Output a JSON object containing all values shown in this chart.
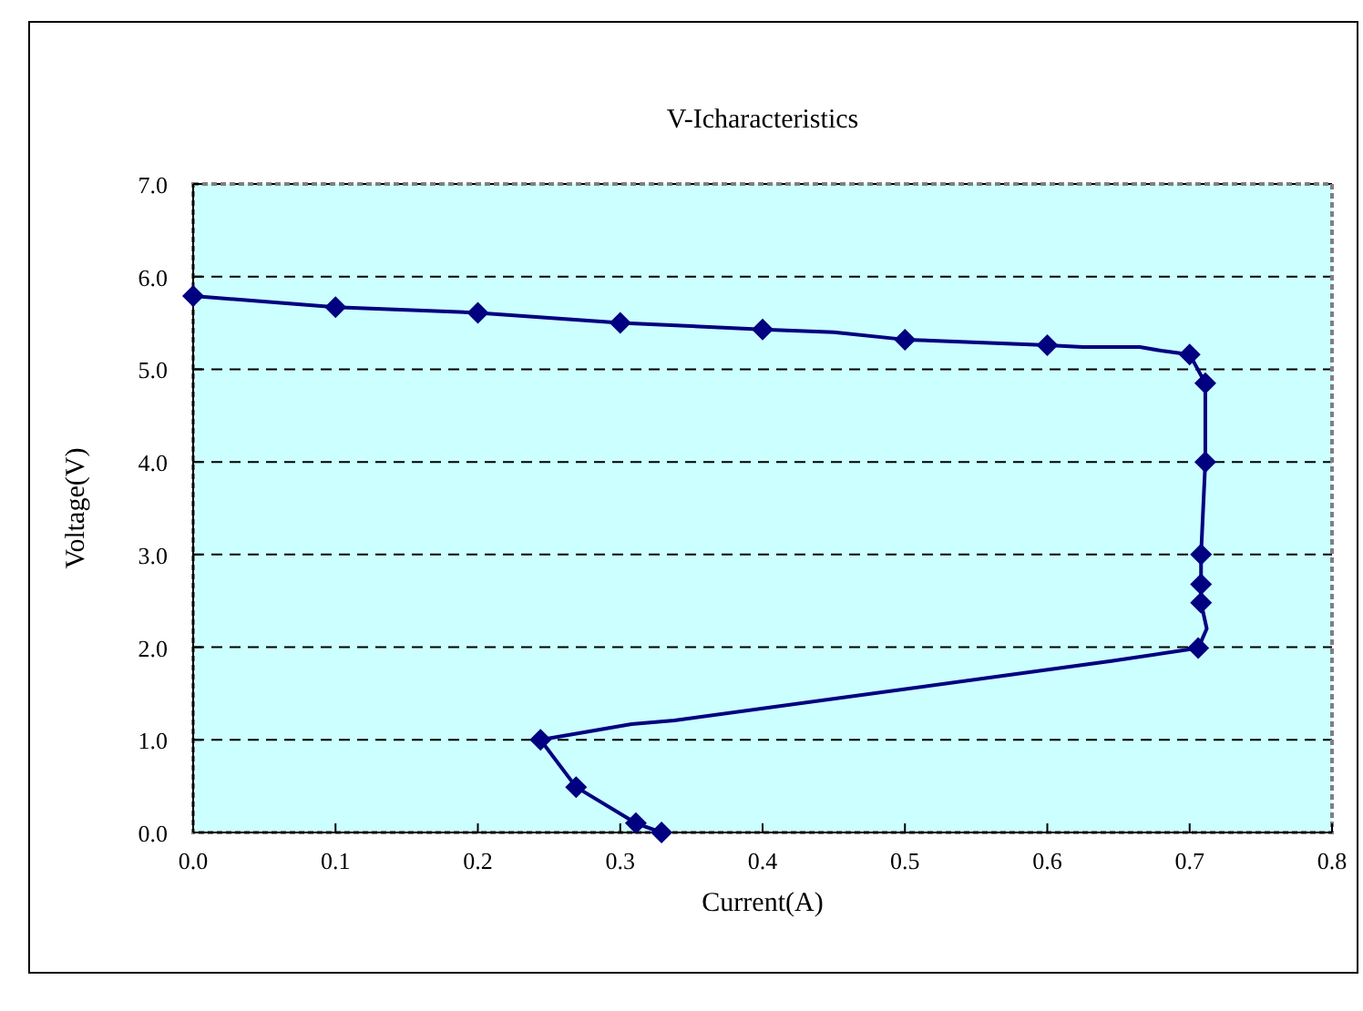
{
  "chart_data": {
    "type": "line",
    "title": "V-Icharacteristics",
    "xlabel": "Current(A)",
    "ylabel": "Voltage(V)",
    "xlim": [
      0,
      0.8
    ],
    "ylim": [
      0,
      7
    ],
    "xticks": [
      {
        "value": 0,
        "label": "0.0"
      },
      {
        "value": 0.1,
        "label": "0.1"
      },
      {
        "value": 0.2,
        "label": "0.2"
      },
      {
        "value": 0.3,
        "label": "0.3"
      },
      {
        "value": 0.4,
        "label": "0.4"
      },
      {
        "value": 0.5,
        "label": "0.5"
      },
      {
        "value": 0.6,
        "label": "0.6"
      },
      {
        "value": 0.7,
        "label": "0.7"
      },
      {
        "value": 0.8,
        "label": "0.8"
      }
    ],
    "yticks": [
      {
        "value": 0,
        "label": "0.0"
      },
      {
        "value": 1,
        "label": "1.0"
      },
      {
        "value": 2,
        "label": "2.0"
      },
      {
        "value": 3,
        "label": "3.0"
      },
      {
        "value": 4,
        "label": "4.0"
      },
      {
        "value": 5,
        "label": "5.0"
      },
      {
        "value": 6,
        "label": "6.0"
      },
      {
        "value": 7,
        "label": "7.0"
      }
    ],
    "grid": "y",
    "series": [
      {
        "color": "#000080",
        "marker": "none",
        "line_style": "solid",
        "x": [
          0,
          0.1,
          0.2,
          0.3,
          0.4,
          0.45,
          0.5,
          0.6,
          0.625,
          0.665,
          0.68,
          0.7,
          0.711,
          0.711,
          0.708,
          0.708,
          0.708,
          0.712,
          0.706,
          0.645,
          0.338,
          0.308,
          0.244,
          0.269,
          0.311,
          0.329
        ],
        "values": [
          5.79,
          5.67,
          5.61,
          5.5,
          5.43,
          5.4,
          5.32,
          5.26,
          5.24,
          5.24,
          5.2,
          5.16,
          4.85,
          4.0,
          3.0,
          2.68,
          2.48,
          2.2,
          1.99,
          1.85,
          1.21,
          1.17,
          1.0,
          0.49,
          0.1,
          0
        ]
      },
      {
        "type": "scatter",
        "color": "#000080",
        "marker": "diamond",
        "x": [
          0,
          0.1,
          0.2,
          0.3,
          0.4,
          0.5,
          0.6,
          0.7,
          0.711,
          0.711,
          0.708,
          0.708,
          0.708,
          0.706,
          0.244,
          0.269,
          0.311,
          0.329
        ],
        "values": [
          5.79,
          5.67,
          5.61,
          5.5,
          5.43,
          5.32,
          5.26,
          5.16,
          4.85,
          4.0,
          3.0,
          2.68,
          2.48,
          1.99,
          1.0,
          0.49,
          0.1,
          0
        ]
      }
    ]
  }
}
